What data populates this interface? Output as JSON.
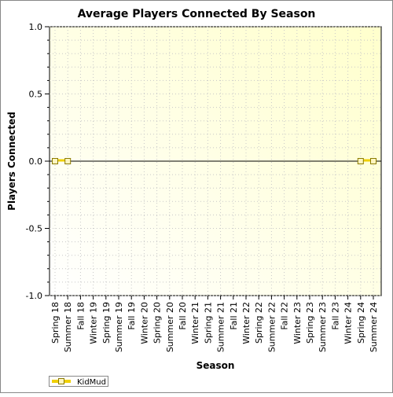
{
  "chart_data": {
    "type": "line",
    "title": "Average Players Connected By Season",
    "xlabel": "Season",
    "ylabel": "Players Connected",
    "categories": [
      "Spring 18",
      "Summer 18",
      "Fall 18",
      "Winter 19",
      "Spring 19",
      "Summer 19",
      "Fall 19",
      "Winter 20",
      "Spring 20",
      "Summer 20",
      "Fall 20",
      "Winter 21",
      "Spring 21",
      "Summer 21",
      "Fall 21",
      "Winter 22",
      "Spring 22",
      "Summer 22",
      "Fall 22",
      "Winter 23",
      "Spring 23",
      "Summer 23",
      "Fall 23",
      "Winter 24",
      "Spring 24",
      "Summer 24"
    ],
    "series": [
      {
        "name": "KidMud",
        "color": "#f0d000",
        "points": [
          {
            "category": "Spring 18",
            "value": 0.0
          },
          {
            "category": "Summer 18",
            "value": 0.0
          },
          {
            "category": "Spring 24",
            "value": 0.0
          },
          {
            "category": "Summer 24",
            "value": 0.0
          }
        ]
      }
    ],
    "ylim": [
      -1.0,
      1.0
    ],
    "yticks": [
      "1.0",
      "0.5",
      "0.0",
      "-0.5",
      "-1.0"
    ],
    "grid": true,
    "legend_position": "bottom-left",
    "background_gradient": [
      "#ffffcc",
      "#ffffff"
    ]
  }
}
